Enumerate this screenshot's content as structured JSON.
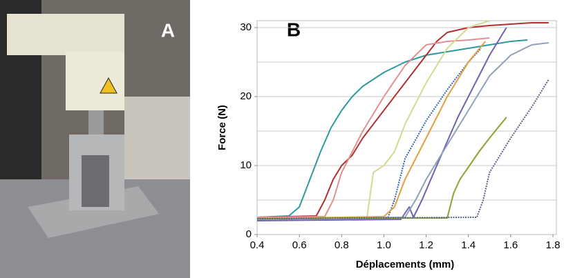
{
  "panel_a": {
    "label": "A"
  },
  "chart_data": {
    "type": "line",
    "panel_label": "B",
    "x_label": "Déplacements (mm)",
    "y_label": "Force (N)",
    "xlim": [
      0.4,
      1.8
    ],
    "ylim": [
      0,
      31
    ],
    "xticks": [
      0.4,
      0.6,
      0.8,
      {
        "value": 1,
        "label": "1.0"
      },
      1.2,
      1.4,
      1.6,
      1.8
    ],
    "yticks": [
      0,
      10,
      20,
      30
    ],
    "ygrid": [
      5,
      10,
      15,
      20,
      25,
      30
    ],
    "series": [
      {
        "color": "#2a9aa0",
        "style": "solid",
        "x": [
          0.4,
          0.55,
          0.6,
          0.65,
          0.7,
          0.75,
          0.8,
          0.85,
          0.9,
          1.0,
          1.1,
          1.2,
          1.3,
          1.4,
          1.5,
          1.6,
          1.68
        ],
        "values": [
          2.5,
          2.7,
          4,
          8,
          12,
          15.5,
          18,
          20,
          21.5,
          23.5,
          25,
          26,
          26.5,
          27,
          27.5,
          28,
          28.2
        ]
      },
      {
        "color": "#b03030",
        "style": "solid",
        "x": [
          0.4,
          0.68,
          0.72,
          0.76,
          0.8,
          0.85,
          0.9,
          1.0,
          1.1,
          1.2,
          1.25,
          1.3,
          1.4,
          1.5,
          1.6,
          1.7,
          1.78
        ],
        "values": [
          2.5,
          2.7,
          5,
          8,
          10,
          11.5,
          14,
          18,
          22,
          26,
          28,
          29.3,
          30,
          30.3,
          30.5,
          30.7,
          30.7
        ]
      },
      {
        "color": "#e09090",
        "style": "solid",
        "x": [
          0.4,
          0.72,
          0.76,
          0.8,
          0.9,
          1.0,
          1.1,
          1.2,
          1.3,
          1.4,
          1.5
        ],
        "values": [
          2.5,
          2.6,
          5,
          9,
          15,
          20,
          24.5,
          27.5,
          28,
          28.2,
          28.5
        ]
      },
      {
        "color": "#d8d890",
        "style": "solid",
        "x": [
          0.4,
          0.92,
          0.95,
          1.0,
          1.05,
          1.1,
          1.2,
          1.3,
          1.4,
          1.5
        ],
        "values": [
          2.3,
          2.5,
          9,
          10,
          12,
          16,
          22,
          27,
          30,
          31
        ]
      },
      {
        "color": "#3060b0",
        "style": "dotted",
        "x": [
          0.4,
          1.02,
          1.05,
          1.1,
          1.2,
          1.3,
          1.4,
          1.46
        ],
        "values": [
          2.2,
          2.5,
          5,
          11,
          16.5,
          21,
          25,
          27
        ]
      },
      {
        "color": "#e0a040",
        "style": "solid",
        "x": [
          0.4,
          1.0,
          1.05,
          1.1,
          1.2,
          1.3,
          1.4,
          1.48
        ],
        "values": [
          2.3,
          2.6,
          4,
          8,
          14,
          20,
          25,
          28
        ]
      },
      {
        "color": "#7060b0",
        "style": "solid",
        "x": [
          0.4,
          1.08,
          1.12,
          1.14,
          1.18,
          1.25,
          1.35,
          1.45,
          1.5,
          1.58
        ],
        "values": [
          2.0,
          2.2,
          4,
          2.5,
          5,
          10,
          17,
          23,
          26,
          30
        ]
      },
      {
        "color": "#90a0b8",
        "style": "solid",
        "x": [
          0.4,
          1.1,
          1.15,
          1.2,
          1.3,
          1.4,
          1.5,
          1.6,
          1.7,
          1.78
        ],
        "values": [
          2.2,
          2.5,
          5,
          8,
          13,
          18,
          23,
          26,
          27.5,
          27.8
        ]
      },
      {
        "color": "#90a030",
        "style": "solid",
        "x": [
          0.4,
          1.3,
          1.33,
          1.36,
          1.45,
          1.5,
          1.58
        ],
        "values": [
          2.3,
          2.4,
          6,
          8,
          12,
          14,
          17
        ]
      },
      {
        "color": "#506080",
        "style": "dotted",
        "x": [
          0.4,
          1.44,
          1.47,
          1.5,
          1.6,
          1.7,
          1.78
        ],
        "values": [
          2.3,
          2.5,
          5,
          9,
          14,
          18.5,
          22.5
        ]
      }
    ]
  }
}
